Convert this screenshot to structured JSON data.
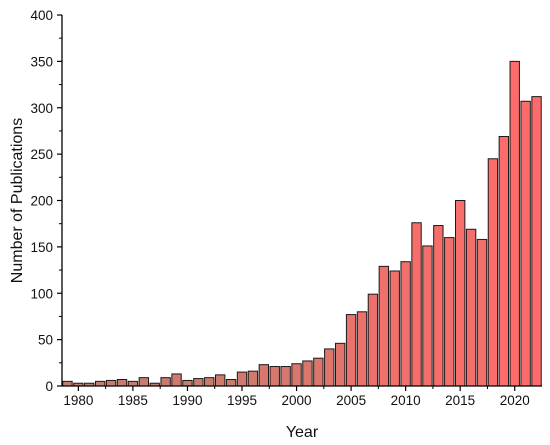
{
  "chart_data": {
    "type": "bar",
    "title": "",
    "xlabel": "Year",
    "ylabel": "Number of Publications",
    "x": [
      1979,
      1980,
      1981,
      1982,
      1983,
      1984,
      1985,
      1986,
      1987,
      1988,
      1989,
      1990,
      1991,
      1992,
      1993,
      1994,
      1995,
      1996,
      1997,
      1998,
      1999,
      2000,
      2001,
      2002,
      2003,
      2004,
      2005,
      2006,
      2007,
      2008,
      2009,
      2010,
      2011,
      2012,
      2013,
      2014,
      2015,
      2016,
      2017,
      2018,
      2019,
      2020,
      2021,
      2022
    ],
    "values": [
      5,
      3,
      3,
      5,
      6,
      7,
      5,
      9,
      3,
      9,
      13,
      6,
      8,
      9,
      12,
      7,
      15,
      16,
      23,
      21,
      21,
      24,
      27,
      30,
      40,
      46,
      77,
      80,
      99,
      129,
      124,
      134,
      176,
      151,
      173,
      160,
      200,
      169,
      158,
      245,
      269,
      350,
      307,
      312
    ],
    "ylim": [
      0,
      400
    ],
    "yticks": [
      0,
      50,
      100,
      150,
      200,
      250,
      300,
      350,
      400
    ],
    "xticks": [
      1980,
      1985,
      1990,
      1995,
      2000,
      2005,
      2010,
      2015,
      2020
    ],
    "grid": false,
    "colors": {
      "bar_fill_old": "#a8866f",
      "bar_fill_new": "#ff6b6b",
      "bar_stroke": "#1a1a1a",
      "axis": "#000000"
    }
  }
}
